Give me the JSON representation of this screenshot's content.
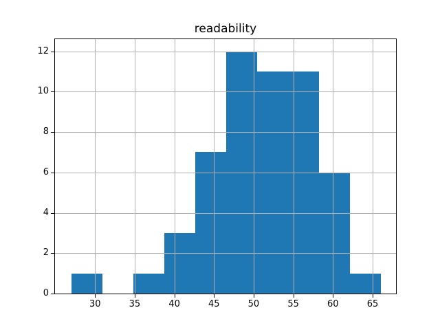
{
  "chart_data": {
    "type": "bar",
    "subtype": "histogram",
    "title": "readability",
    "xlabel": "",
    "ylabel": "",
    "bin_edges": [
      27.0,
      30.9,
      34.8,
      38.7,
      42.6,
      46.5,
      50.4,
      54.3,
      58.2,
      62.1,
      66.0
    ],
    "counts": [
      1,
      0,
      1,
      3,
      7,
      12,
      11,
      11,
      6,
      1
    ],
    "xticks": [
      30,
      35,
      40,
      45,
      50,
      55,
      60,
      65
    ],
    "yticks": [
      0,
      2,
      4,
      6,
      8,
      10,
      12
    ],
    "xlim": [
      24.95,
      67.95
    ],
    "ylim": [
      0,
      12.6
    ],
    "grid": true,
    "grid_above_bars": true,
    "legend": false,
    "bar_color": "#1f77b4",
    "grid_color": "#b0b0b0",
    "spine_color": "#000000",
    "text_color": "#000000",
    "background_color": "#ffffff"
  }
}
